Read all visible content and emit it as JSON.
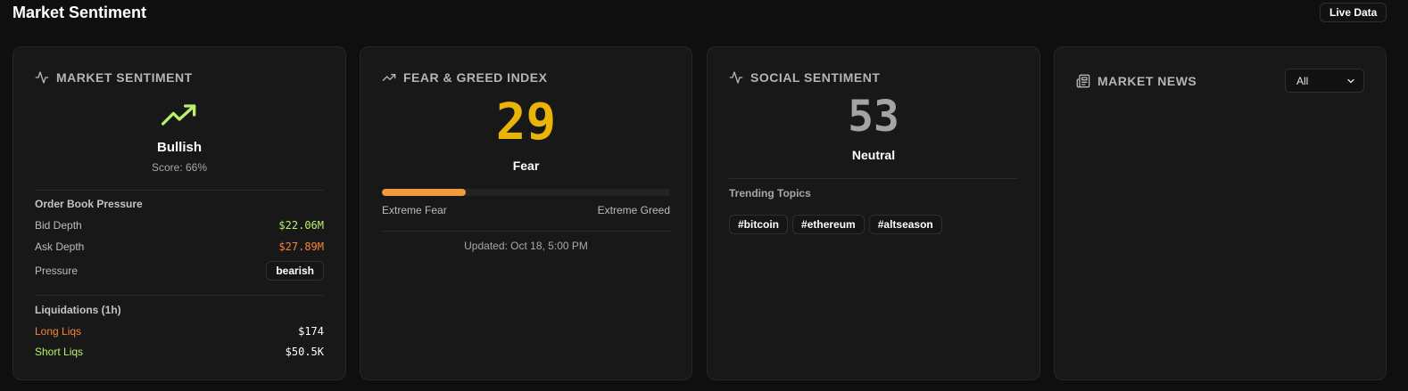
{
  "page": {
    "title": "Market Sentiment",
    "live_badge": "Live Data"
  },
  "colors": {
    "bullish_green": "#b7f26a",
    "bearish_orange": "#f5843a",
    "fear_gold": "#eab308",
    "neutral_gray": "#a3a3a3",
    "bar_fill": "#f29a3e"
  },
  "market_sentiment": {
    "header": "MARKET SENTIMENT",
    "icon": "activity-icon",
    "trend_icon": "trending-up-icon",
    "label": "Bullish",
    "score": "Score: 66%",
    "order_book": {
      "title": "Order Book Pressure",
      "bid_label": "Bid Depth",
      "bid_value": "$22.06M",
      "ask_label": "Ask Depth",
      "ask_value": "$27.89M",
      "pressure_label": "Pressure",
      "pressure_value": "bearish"
    },
    "liquidations": {
      "title": "Liquidations (1h)",
      "long_label": "Long Liqs",
      "long_value": "$174",
      "short_label": "Short Liqs",
      "short_value": "$50.5K"
    }
  },
  "fear_greed": {
    "header": "FEAR & GREED INDEX",
    "icon": "trending-up-icon",
    "value": "29",
    "value_fraction": 0.29,
    "label": "Fear",
    "scale_min": "Extreme Fear",
    "scale_max": "Extreme Greed",
    "updated": "Updated: Oct 18, 5:00 PM"
  },
  "social_sentiment": {
    "header": "SOCIAL SENTIMENT",
    "icon": "activity-icon",
    "value": "53",
    "label": "Neutral",
    "trending_title": "Trending Topics",
    "topics": [
      "#bitcoin",
      "#ethereum",
      "#altseason"
    ]
  },
  "market_news": {
    "header": "MARKET NEWS",
    "icon": "newspaper-icon",
    "filter_selected": "All"
  }
}
